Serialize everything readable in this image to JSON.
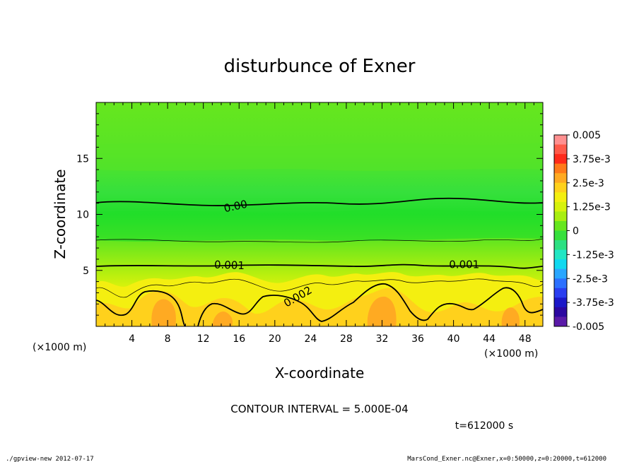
{
  "chart_data": {
    "type": "contour",
    "title": "disturbunce of Exner",
    "xlabel": "X-coordinate",
    "ylabel": "Z-coordinate",
    "x_unit_left": "(×1000 m)",
    "x_unit_right": "(×1000 m)",
    "xlim": [
      0,
      50
    ],
    "ylim": [
      0,
      20
    ],
    "xticks": [
      "4",
      "8",
      "12",
      "16",
      "20",
      "24",
      "28",
      "32",
      "36",
      "40",
      "44",
      "48"
    ],
    "yticks": [
      "5",
      "10",
      "15"
    ],
    "contour_interval_text": "CONTOUR INTERVAL = 5.000E-04",
    "time_text": "t=612000 s",
    "colorbar": {
      "labels": [
        "0.005",
        "3.75e-3",
        "2.5e-3",
        "1.25e-3",
        "0",
        "-1.25e-3",
        "-2.5e-3",
        "-3.75e-3",
        "-0.005"
      ],
      "colors": [
        "#ff9090",
        "#ff5a4a",
        "#ff2a1a",
        "#ff7a1a",
        "#ffaa22",
        "#ffd11c",
        "#f4ef10",
        "#d6f20c",
        "#a8ee10",
        "#66e61e",
        "#36e03c",
        "#2ce082",
        "#22e6c4",
        "#10d8f0",
        "#2aa6ff",
        "#2c70ff",
        "#2a3ef0",
        "#1c18c8",
        "#2c08a0",
        "#5a1aa8"
      ]
    },
    "contour_labels": [
      {
        "text": "0.00",
        "x": 14.4,
        "z": 10.2,
        "angle": -12
      },
      {
        "text": "0.001",
        "x": 13.2,
        "z": 5.2,
        "angle": 2
      },
      {
        "text": "0.001",
        "x": 39.5,
        "z": 5.2,
        "angle": 0
      },
      {
        "text": "0.002",
        "x": 21.3,
        "z": 1.7,
        "angle": -30
      }
    ]
  },
  "footer": {
    "left": "./gpview-new  2012-07-17",
    "right": "MarsCond_Exner.nc@Exner,x=0:50000,z=0:20000,t=612000"
  }
}
